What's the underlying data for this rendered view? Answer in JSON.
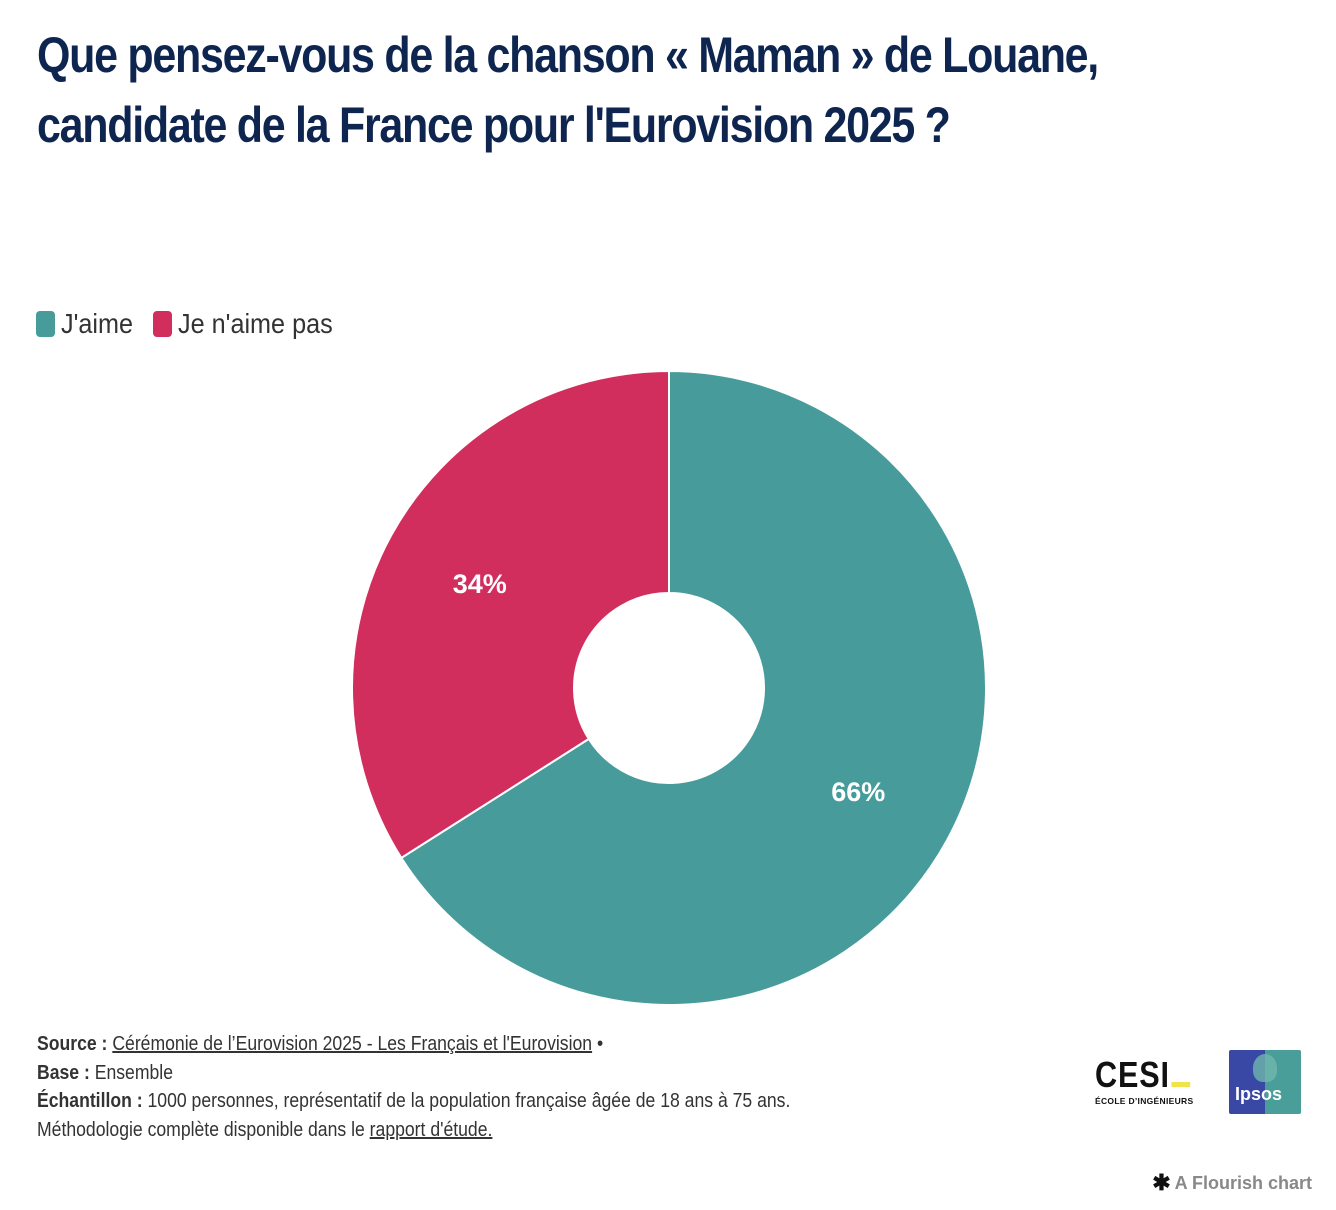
{
  "chart_data": {
    "type": "pie",
    "variant": "donut",
    "title": "Que pensez-vous de la chanson « Maman » de Louane, candidate de la France pour l'Eurovision 2025 ?",
    "categories": [
      "J'aime",
      "Je n'aime pas"
    ],
    "values": [
      66,
      34
    ],
    "unit": "%",
    "data_labels": [
      "66%",
      "34%"
    ],
    "colors": [
      "#479c9b",
      "#d22e5d"
    ],
    "start_angle_deg": 0,
    "direction": "clockwise",
    "legend_position": "top-left"
  },
  "legend": {
    "items": [
      {
        "label": "J'aime",
        "color": "#479c9b"
      },
      {
        "label": "Je n'aime pas",
        "color": "#d22e5d"
      }
    ]
  },
  "footer": {
    "source_label": "Source :",
    "source_link": "Cérémonie de l’Eurovision 2025 - Les Français et l'Eurovision",
    "source_sep": " •",
    "base_label": "Base :",
    "base_value": " Ensemble",
    "sample_label": "Échantillon :",
    "sample_value": " 1000 personnes, représentatif de la population française âgée de 18 ans à 75 ans.",
    "method_text": "Méthodologie complète disponible dans le ",
    "method_link": "rapport d'étude."
  },
  "logos": {
    "cesi_word": "CESI",
    "cesi_sub": "ÉCOLE D’INGÉNIEURS",
    "ipsos_text": "Ipsos"
  },
  "credit": {
    "icon": "flourish-asterisk-icon",
    "label": "A Flourish chart"
  }
}
